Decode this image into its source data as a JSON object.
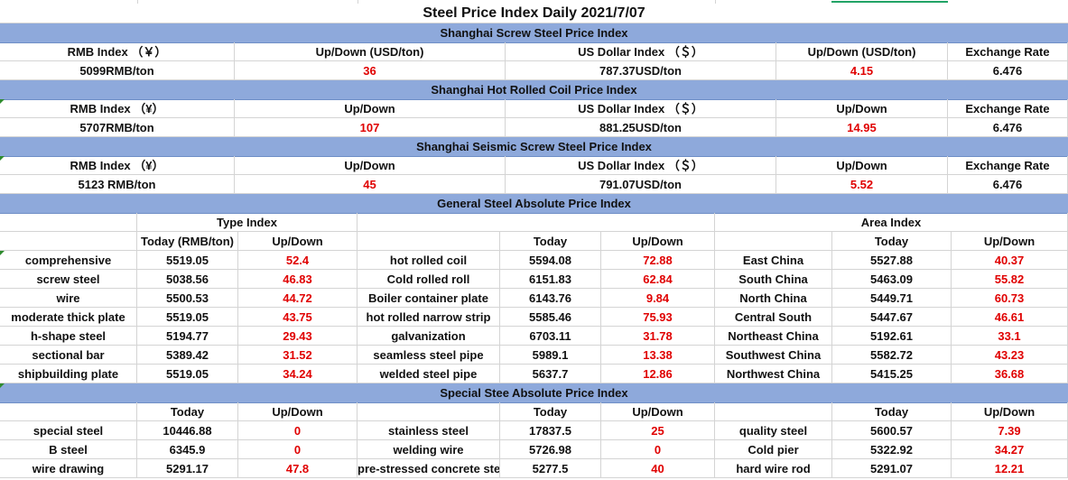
{
  "title": "Steel Price Index Daily  2021/7/07",
  "sections": [
    {
      "band": "Shanghai Screw Steel Price Index",
      "headers": [
        "RMB Index （￥）",
        "Up/Down (USD/ton)",
        "US Dollar Index （＄）",
        "Up/Down (USD/ton)",
        "Exchange Rate"
      ],
      "values": [
        "5099RMB/ton",
        "36",
        "787.37USD/ton",
        "4.15",
        "6.476"
      ]
    },
    {
      "band": "Shanghai Hot Rolled Coil Price Index",
      "headers": [
        "RMB Index （¥）",
        "Up/Down",
        "US Dollar Index （＄）",
        "Up/Down",
        "Exchange Rate"
      ],
      "values": [
        "5707RMB/ton",
        "107",
        "881.25USD/ton",
        "14.95",
        "6.476"
      ]
    },
    {
      "band": "Shanghai Seismic Screw Steel Price Index",
      "headers": [
        "RMB Index （¥）",
        "Up/Down",
        "US Dollar Index （＄）",
        "Up/Down",
        "Exchange Rate"
      ],
      "values": [
        "5123 RMB/ton",
        "45",
        "791.07USD/ton",
        "5.52",
        "6.476"
      ]
    }
  ],
  "general": {
    "band": "General Steel Absolute Price Index",
    "type_index": "Type Index",
    "area_index": "Area Index",
    "headers": [
      "",
      "Today (RMB/ton)",
      "Up/Down",
      "",
      "Today",
      "Up/Down",
      "",
      "Today",
      "Up/Down"
    ],
    "rows": [
      [
        "comprehensive",
        "5519.05",
        "52.4",
        "hot rolled coil",
        "5594.08",
        "72.88",
        "East China",
        "5527.88",
        "40.37"
      ],
      [
        "screw steel",
        "5038.56",
        "46.83",
        "Cold rolled roll",
        "6151.83",
        "62.84",
        "South China",
        "5463.09",
        "55.82"
      ],
      [
        "wire",
        "5500.53",
        "44.72",
        "Boiler container plate",
        "6143.76",
        "9.84",
        "North China",
        "5449.71",
        "60.73"
      ],
      [
        "moderate thick plate",
        "5519.05",
        "43.75",
        "hot rolled narrow strip",
        "5585.46",
        "75.93",
        "Central South",
        "5447.67",
        "46.61"
      ],
      [
        "h-shape steel",
        "5194.77",
        "29.43",
        "galvanization",
        "6703.11",
        "31.78",
        "Northeast China",
        "5192.61",
        "33.1"
      ],
      [
        "sectional bar",
        "5389.42",
        "31.52",
        "seamless steel pipe",
        "5989.1",
        "13.38",
        "Southwest China",
        "5582.72",
        "43.23"
      ],
      [
        "shipbuilding plate",
        "5519.05",
        "34.24",
        "welded steel pipe",
        "5637.7",
        "12.86",
        "Northwest China",
        "5415.25",
        "36.68"
      ]
    ]
  },
  "special": {
    "band": "Special Stee Absolute Price Index",
    "headers": [
      "",
      "Today",
      "Up/Down",
      "",
      "Today",
      "Up/Down",
      "",
      "Today",
      "Up/Down"
    ],
    "rows": [
      [
        "special steel",
        "10446.88",
        "0",
        "stainless steel",
        "17837.5",
        "25",
        "quality steel",
        "5600.57",
        "7.39"
      ],
      [
        "B steel",
        "6345.9",
        "0",
        "welding wire",
        "5726.98",
        "0",
        "Cold pier",
        "5322.92",
        "34.27"
      ],
      [
        "wire drawing",
        "5291.17",
        "47.8",
        "pre-stressed concrete steel",
        "5277.5",
        "40",
        "hard wire rod",
        "5291.07",
        "12.21"
      ]
    ]
  },
  "colors": {
    "band": "#8ea9db",
    "up_value": "#e00000",
    "text": "#111111"
  }
}
